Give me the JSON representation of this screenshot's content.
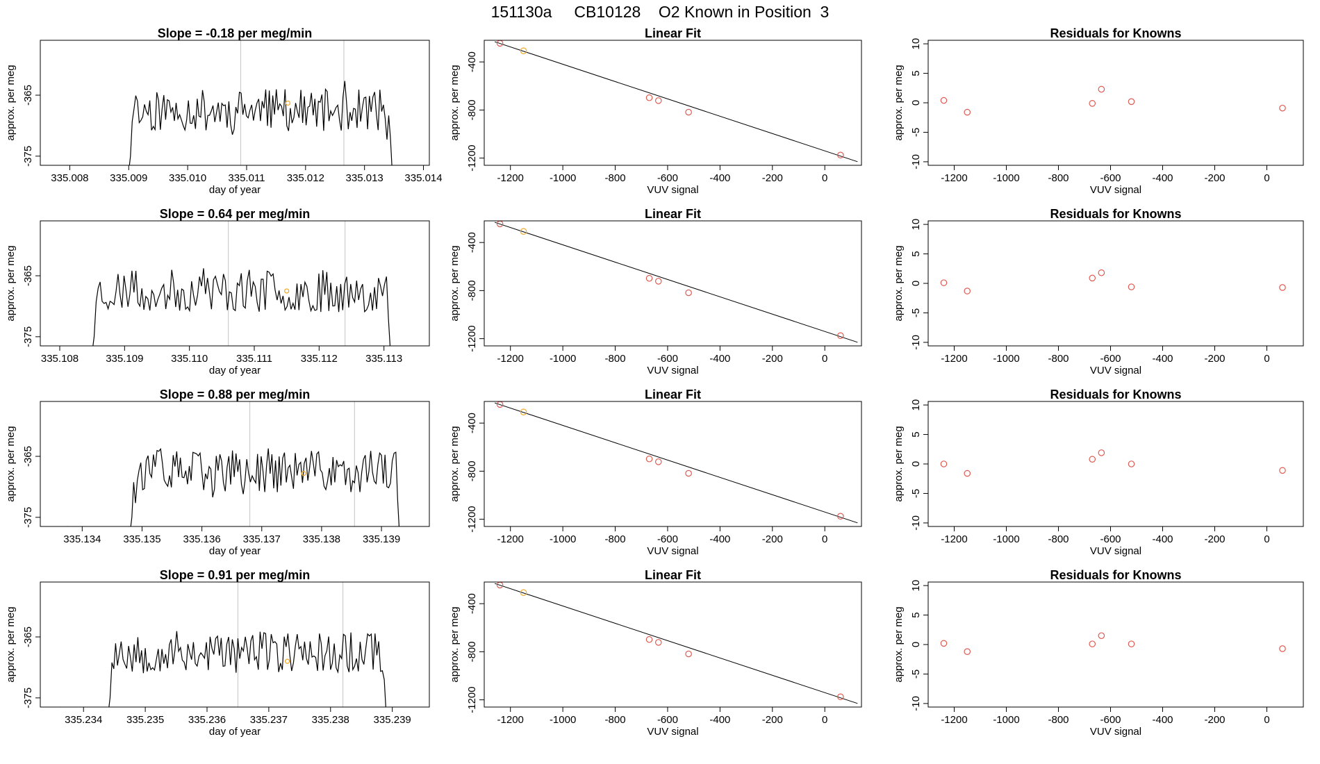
{
  "page_title": "151130a     CB10128    O2 Known in Position  3",
  "colors": {
    "axis": "#000000",
    "series": "#000000",
    "gridline": "#cccccc",
    "point": "#e05a50",
    "highlight": "#f5a623"
  },
  "chart_data": [
    {
      "id": "r1-time",
      "type": "line",
      "title": "Slope =  -0.18  per meg/min",
      "xlabel": "day of year",
      "ylabel": "approx. per meg",
      "xlim": [
        335.0075,
        335.0141
      ],
      "ylim": [
        -376.5,
        -356
      ],
      "xticks": [
        335.008,
        335.009,
        335.01,
        335.011,
        335.012,
        335.013,
        335.014
      ],
      "xtick_labels": [
        "335.008",
        "335.009",
        "335.010",
        "335.011",
        "335.012",
        "335.013",
        "335.014"
      ],
      "yticks": [
        -365,
        -375
      ],
      "ytick_labels": [
        "-365",
        "-375"
      ],
      "segment": [
        335.009,
        335.01347
      ],
      "vlines": [
        335.0109,
        335.01265
      ],
      "marker": [
        335.0117,
        -366.3
      ],
      "seed": 11
    },
    {
      "id": "r1-fit",
      "type": "scatter",
      "title": "Linear Fit",
      "xlabel": "VUV signal",
      "ylabel": "approx. per meg",
      "xlim": [
        -1300,
        140
      ],
      "ylim": [
        -1260,
        -220
      ],
      "xticks": [
        -1200,
        -1000,
        -800,
        -600,
        -400,
        -200,
        0
      ],
      "xtick_labels": [
        "-1200",
        "-1000",
        "-800",
        "-600",
        "-400",
        "-200",
        "0"
      ],
      "yticks": [
        -400,
        -800,
        -1200
      ],
      "ytick_labels": [
        "-400",
        "-800",
        "-1200"
      ],
      "x": [
        -1240,
        -1150,
        -670,
        -635,
        -520,
        60
      ],
      "y": [
        -245,
        -308,
        -698,
        -722,
        -818,
        -1175
      ],
      "highlight_index": 1,
      "fit_line": [
        [
          -1260,
          -232
        ],
        [
          125,
          -1230
        ]
      ]
    },
    {
      "id": "r1-resid",
      "type": "scatter",
      "title": "Residuals for Knowns",
      "xlabel": "VUV signal",
      "ylabel": "approx. per meg",
      "xlim": [
        -1300,
        140
      ],
      "ylim": [
        -10.6,
        10.6
      ],
      "xticks": [
        -1200,
        -1000,
        -800,
        -600,
        -400,
        -200,
        0
      ],
      "xtick_labels": [
        "-1200",
        "-1000",
        "-800",
        "-600",
        "-400",
        "-200",
        "0"
      ],
      "yticks": [
        10,
        5,
        0,
        -5,
        -10
      ],
      "ytick_labels": [
        "10",
        "5",
        "0",
        "-5",
        "-10"
      ],
      "x": [
        -1240,
        -1150,
        -670,
        -635,
        -520,
        60
      ],
      "y": [
        0.4,
        -1.6,
        -0.1,
        2.3,
        0.2,
        -0.9
      ]
    },
    {
      "id": "r2-time",
      "type": "line",
      "title": "Slope =  0.64  per meg/min",
      "xlabel": "day of year",
      "ylabel": "approx. per meg",
      "xlim": [
        335.1077,
        335.1137
      ],
      "ylim": [
        -376.5,
        -356
      ],
      "xticks": [
        335.108,
        335.109,
        335.11,
        335.111,
        335.112,
        335.113
      ],
      "xtick_labels": [
        "335.108",
        "335.109",
        "335.110",
        "335.111",
        "335.112",
        "335.113"
      ],
      "yticks": [
        -365,
        -375
      ],
      "ytick_labels": [
        "-365",
        "-375"
      ],
      "segment": [
        335.1085,
        335.1131
      ],
      "vlines": [
        335.1106,
        335.1124
      ],
      "marker": [
        335.1115,
        -367.5
      ],
      "seed": 23
    },
    {
      "id": "r2-fit",
      "type": "scatter",
      "title": "Linear Fit",
      "xlabel": "VUV signal",
      "ylabel": "approx. per meg",
      "xlim": [
        -1300,
        140
      ],
      "ylim": [
        -1260,
        -220
      ],
      "xticks": [
        -1200,
        -1000,
        -800,
        -600,
        -400,
        -200,
        0
      ],
      "xtick_labels": [
        "-1200",
        "-1000",
        "-800",
        "-600",
        "-400",
        "-200",
        "0"
      ],
      "yticks": [
        -400,
        -800,
        -1200
      ],
      "ytick_labels": [
        "-400",
        "-800",
        "-1200"
      ],
      "x": [
        -1240,
        -1150,
        -670,
        -635,
        -520,
        60
      ],
      "y": [
        -245,
        -308,
        -698,
        -722,
        -818,
        -1175
      ],
      "highlight_index": 1,
      "fit_line": [
        [
          -1260,
          -232
        ],
        [
          125,
          -1230
        ]
      ]
    },
    {
      "id": "r2-resid",
      "type": "scatter",
      "title": "Residuals for Knowns",
      "xlabel": "VUV signal",
      "ylabel": "approx. per meg",
      "xlim": [
        -1300,
        140
      ],
      "ylim": [
        -10.6,
        10.6
      ],
      "xticks": [
        -1200,
        -1000,
        -800,
        -600,
        -400,
        -200,
        0
      ],
      "xtick_labels": [
        "-1200",
        "-1000",
        "-800",
        "-600",
        "-400",
        "-200",
        "0"
      ],
      "yticks": [
        10,
        5,
        0,
        -5,
        -10
      ],
      "ytick_labels": [
        "10",
        "5",
        "0",
        "-5",
        "-10"
      ],
      "x": [
        -1240,
        -1150,
        -670,
        -635,
        -520,
        60
      ],
      "y": [
        0.1,
        -1.3,
        0.9,
        1.8,
        -0.6,
        -0.7
      ]
    },
    {
      "id": "r3-time",
      "type": "line",
      "title": "Slope =  0.88  per meg/min",
      "xlabel": "day of year",
      "ylabel": "approx. per meg",
      "xlim": [
        335.1333,
        335.1398
      ],
      "ylim": [
        -376.5,
        -356
      ],
      "xticks": [
        335.134,
        335.135,
        335.136,
        335.137,
        335.138,
        335.139
      ],
      "xtick_labels": [
        "335.134",
        "335.135",
        "335.136",
        "335.137",
        "335.138",
        "335.139"
      ],
      "yticks": [
        -365,
        -375
      ],
      "ytick_labels": [
        "-365",
        "-375"
      ],
      "segment": [
        335.1348,
        335.1393
      ],
      "vlines": [
        335.1368,
        335.13855
      ],
      "marker": [
        335.1377,
        -367.8
      ],
      "seed": 37
    },
    {
      "id": "r3-fit",
      "type": "scatter",
      "title": "Linear Fit",
      "xlabel": "VUV signal",
      "ylabel": "approx. per meg",
      "xlim": [
        -1300,
        140
      ],
      "ylim": [
        -1260,
        -220
      ],
      "xticks": [
        -1200,
        -1000,
        -800,
        -600,
        -400,
        -200,
        0
      ],
      "xtick_labels": [
        "-1200",
        "-1000",
        "-800",
        "-600",
        "-400",
        "-200",
        "0"
      ],
      "yticks": [
        -400,
        -800,
        -1200
      ],
      "ytick_labels": [
        "-400",
        "-800",
        "-1200"
      ],
      "x": [
        -1240,
        -1150,
        -670,
        -635,
        -520,
        60
      ],
      "y": [
        -245,
        -308,
        -698,
        -722,
        -818,
        -1175
      ],
      "highlight_index": 1,
      "fit_line": [
        [
          -1260,
          -232
        ],
        [
          125,
          -1230
        ]
      ]
    },
    {
      "id": "r3-resid",
      "type": "scatter",
      "title": "Residuals for Knowns",
      "xlabel": "VUV signal",
      "ylabel": "approx. per meg",
      "xlim": [
        -1300,
        140
      ],
      "ylim": [
        -10.6,
        10.6
      ],
      "xticks": [
        -1200,
        -1000,
        -800,
        -600,
        -400,
        -200,
        0
      ],
      "xtick_labels": [
        "-1200",
        "-1000",
        "-800",
        "-600",
        "-400",
        "-200",
        "0"
      ],
      "yticks": [
        10,
        5,
        0,
        -5,
        -10
      ],
      "ytick_labels": [
        "10",
        "5",
        "0",
        "-5",
        "-10"
      ],
      "x": [
        -1240,
        -1150,
        -670,
        -635,
        -520,
        60
      ],
      "y": [
        0.0,
        -1.6,
        0.8,
        1.9,
        0.0,
        -1.1
      ]
    },
    {
      "id": "r4-time",
      "type": "line",
      "title": "Slope =  0.91  per meg/min",
      "xlabel": "day of year",
      "ylabel": "approx. per meg",
      "xlim": [
        335.2333,
        335.2396
      ],
      "ylim": [
        -376.5,
        -356
      ],
      "xticks": [
        335.234,
        335.235,
        335.236,
        335.237,
        335.238,
        335.239
      ],
      "xtick_labels": [
        "335.234",
        "335.235",
        "335.236",
        "335.237",
        "335.238",
        "335.239"
      ],
      "yticks": [
        -365,
        -375
      ],
      "ytick_labels": [
        "-365",
        "-375"
      ],
      "segment": [
        335.2344,
        335.2389
      ],
      "vlines": [
        335.2365,
        335.2382
      ],
      "marker": [
        335.2373,
        -369.0
      ],
      "seed": 53
    },
    {
      "id": "r4-fit",
      "type": "scatter",
      "title": "Linear Fit",
      "xlabel": "VUV signal",
      "ylabel": "approx. per meg",
      "xlim": [
        -1300,
        140
      ],
      "ylim": [
        -1260,
        -220
      ],
      "xticks": [
        -1200,
        -1000,
        -800,
        -600,
        -400,
        -200,
        0
      ],
      "xtick_labels": [
        "-1200",
        "-1000",
        "-800",
        "-600",
        "-400",
        "-200",
        "0"
      ],
      "yticks": [
        -400,
        -800,
        -1200
      ],
      "ytick_labels": [
        "-400",
        "-800",
        "-1200"
      ],
      "x": [
        -1240,
        -1150,
        -670,
        -635,
        -520,
        60
      ],
      "y": [
        -245,
        -308,
        -698,
        -722,
        -818,
        -1175
      ],
      "highlight_index": 1,
      "fit_line": [
        [
          -1260,
          -232
        ],
        [
          125,
          -1230
        ]
      ]
    },
    {
      "id": "r4-resid",
      "type": "scatter",
      "title": "Residuals for Knowns",
      "xlabel": "VUV signal",
      "ylabel": "approx. per meg",
      "xlim": [
        -1300,
        140
      ],
      "ylim": [
        -10.6,
        10.6
      ],
      "xticks": [
        -1200,
        -1000,
        -800,
        -600,
        -400,
        -200,
        0
      ],
      "xtick_labels": [
        "-1200",
        "-1000",
        "-800",
        "-600",
        "-400",
        "-200",
        "0"
      ],
      "yticks": [
        10,
        5,
        0,
        -5,
        -10
      ],
      "ytick_labels": [
        "10",
        "5",
        "0",
        "-5",
        "-10"
      ],
      "x": [
        -1240,
        -1150,
        -670,
        -635,
        -520,
        60
      ],
      "y": [
        0.2,
        -1.2,
        0.1,
        1.5,
        0.1,
        -0.7
      ]
    }
  ]
}
